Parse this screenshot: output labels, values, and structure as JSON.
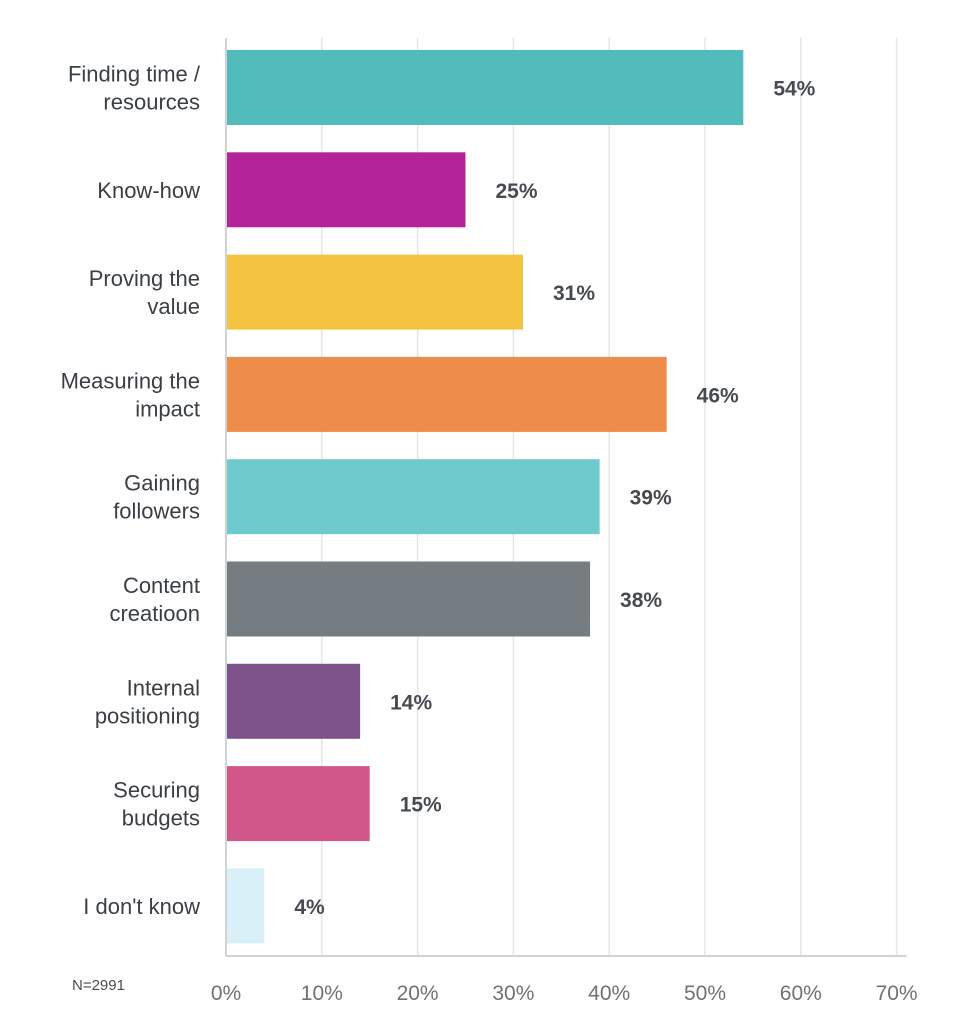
{
  "chart_data": {
    "type": "bar",
    "orientation": "horizontal",
    "categories": [
      [
        "Finding time /",
        "resources"
      ],
      [
        "Know-how"
      ],
      [
        "Proving the",
        "value"
      ],
      [
        "Measuring the",
        "impact"
      ],
      [
        "Gaining",
        "followers"
      ],
      [
        "Content",
        "creatioon"
      ],
      [
        "Internal",
        "positioning"
      ],
      [
        "Securing",
        "budgets"
      ],
      [
        "I don't know"
      ]
    ],
    "values": [
      54,
      25,
      31,
      46,
      39,
      38,
      14,
      15,
      4
    ],
    "value_labels": [
      "54%",
      "25%",
      "31%",
      "46%",
      "39%",
      "38%",
      "14%",
      "15%",
      "4%"
    ],
    "colors": [
      "#52bcbc",
      "#b5239a",
      "#f4c340",
      "#ee8c49",
      "#6fcacd",
      "#757d82",
      "#7c548b",
      "#d1578b",
      "#d9f0f8"
    ],
    "xlim": [
      0,
      70
    ],
    "x_ticks": [
      0,
      10,
      20,
      30,
      40,
      50,
      60,
      70
    ],
    "x_tick_labels": [
      "0%",
      "10%",
      "20%",
      "30%",
      "40%",
      "50%",
      "60%",
      "70%"
    ],
    "grid": "vertical",
    "sample_note": "N=2991"
  }
}
